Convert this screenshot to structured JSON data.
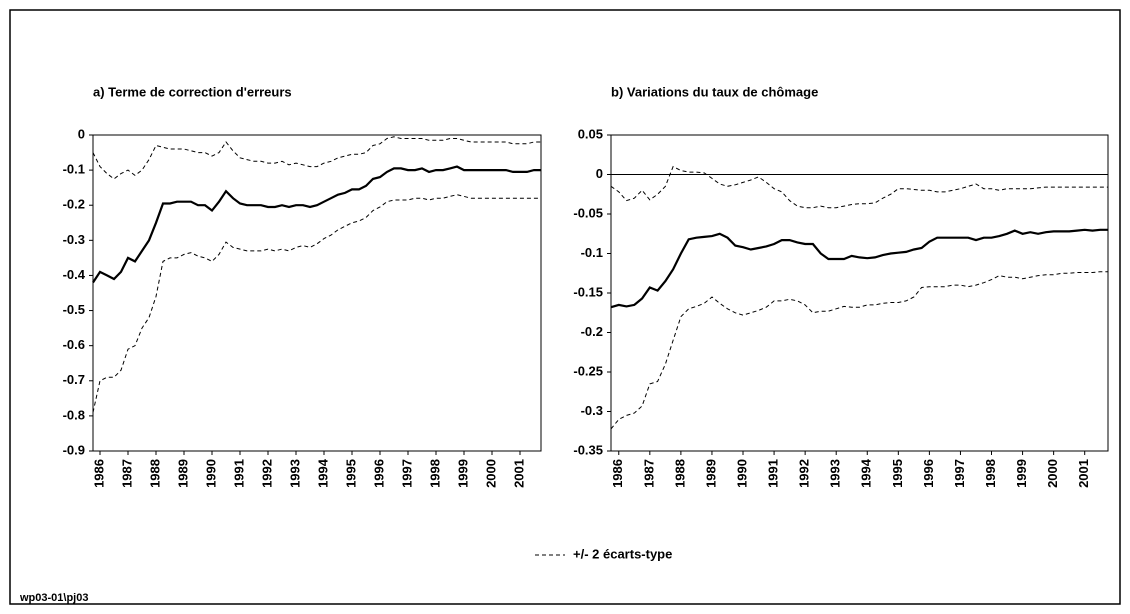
{
  "chart_data": [
    {
      "type": "line",
      "title": "a) Terme de correction d'erreurs",
      "categories": [
        null,
        "1986",
        null,
        null,
        null,
        "1987",
        null,
        null,
        null,
        "1988",
        null,
        null,
        null,
        "1989",
        null,
        null,
        null,
        "1990",
        null,
        null,
        null,
        "1991",
        null,
        null,
        null,
        "1992",
        null,
        null,
        null,
        "1993",
        null,
        null,
        null,
        "1994",
        null,
        null,
        null,
        "1995",
        null,
        null,
        null,
        "1996",
        null,
        null,
        null,
        "1997",
        null,
        null,
        null,
        "1998",
        null,
        null,
        null,
        "1999",
        null,
        null,
        null,
        "2000",
        null,
        null,
        null,
        "2001",
        null,
        null,
        null
      ],
      "ylim": [
        -0.9,
        0
      ],
      "yticks": [
        0,
        -0.1,
        -0.2,
        -0.3,
        -0.4,
        -0.5,
        -0.6,
        -0.7,
        -0.8,
        -0.9
      ],
      "zero_line": false,
      "series": [
        {
          "color": "#000000",
          "dash": false,
          "values": [
            -0.42,
            -0.39,
            -0.4,
            -0.41,
            -0.39,
            -0.35,
            -0.36,
            -0.33,
            -0.3,
            -0.25,
            -0.195,
            -0.195,
            -0.19,
            -0.19,
            -0.19,
            -0.2,
            -0.2,
            -0.215,
            -0.19,
            -0.16,
            -0.18,
            -0.195,
            -0.2,
            -0.2,
            -0.2,
            -0.205,
            -0.205,
            -0.2,
            -0.205,
            -0.2,
            -0.2,
            -0.205,
            -0.2,
            -0.19,
            -0.18,
            -0.17,
            -0.165,
            -0.155,
            -0.155,
            -0.145,
            -0.125,
            -0.12,
            -0.105,
            -0.095,
            -0.095,
            -0.1,
            -0.1,
            -0.095,
            -0.105,
            -0.1,
            -0.1,
            -0.095,
            -0.09,
            -0.1,
            -0.1,
            -0.1,
            -0.1,
            -0.1,
            -0.1,
            -0.1,
            -0.105,
            -0.105,
            -0.105,
            -0.1,
            -0.1
          ]
        },
        {
          "color": "#000000",
          "dash": true,
          "values": [
            -0.05,
            -0.09,
            -0.11,
            -0.125,
            -0.11,
            -0.1,
            -0.115,
            -0.1,
            -0.07,
            -0.03,
            -0.035,
            -0.04,
            -0.04,
            -0.04,
            -0.045,
            -0.05,
            -0.05,
            -0.06,
            -0.05,
            -0.02,
            -0.045,
            -0.065,
            -0.07,
            -0.075,
            -0.075,
            -0.08,
            -0.08,
            -0.075,
            -0.085,
            -0.08,
            -0.085,
            -0.09,
            -0.09,
            -0.08,
            -0.075,
            -0.065,
            -0.06,
            -0.055,
            -0.055,
            -0.05,
            -0.03,
            -0.025,
            -0.01,
            -0.005,
            -0.01,
            -0.01,
            -0.01,
            -0.01,
            -0.015,
            -0.015,
            -0.015,
            -0.01,
            -0.01,
            -0.015,
            -0.02,
            -0.02,
            -0.02,
            -0.02,
            -0.02,
            -0.02,
            -0.025,
            -0.025,
            -0.025,
            -0.02,
            -0.02
          ]
        },
        {
          "color": "#000000",
          "dash": true,
          "values": [
            -0.79,
            -0.7,
            -0.69,
            -0.69,
            -0.67,
            -0.61,
            -0.6,
            -0.55,
            -0.52,
            -0.46,
            -0.36,
            -0.35,
            -0.35,
            -0.34,
            -0.335,
            -0.345,
            -0.35,
            -0.36,
            -0.34,
            -0.305,
            -0.32,
            -0.325,
            -0.33,
            -0.33,
            -0.33,
            -0.325,
            -0.33,
            -0.325,
            -0.33,
            -0.32,
            -0.315,
            -0.32,
            -0.31,
            -0.295,
            -0.285,
            -0.27,
            -0.26,
            -0.25,
            -0.245,
            -0.235,
            -0.215,
            -0.205,
            -0.19,
            -0.185,
            -0.185,
            -0.185,
            -0.18,
            -0.18,
            -0.185,
            -0.18,
            -0.18,
            -0.175,
            -0.17,
            -0.175,
            -0.18,
            -0.18,
            -0.18,
            -0.18,
            -0.18,
            -0.18,
            -0.18,
            -0.18,
            -0.18,
            -0.18,
            -0.18
          ]
        }
      ]
    },
    {
      "type": "line",
      "title": "b) Variations du taux de chômage",
      "categories": [
        null,
        "1986",
        null,
        null,
        null,
        "1987",
        null,
        null,
        null,
        "1988",
        null,
        null,
        null,
        "1989",
        null,
        null,
        null,
        "1990",
        null,
        null,
        null,
        "1991",
        null,
        null,
        null,
        "1992",
        null,
        null,
        null,
        "1993",
        null,
        null,
        null,
        "1994",
        null,
        null,
        null,
        "1995",
        null,
        null,
        null,
        "1996",
        null,
        null,
        null,
        "1997",
        null,
        null,
        null,
        "1998",
        null,
        null,
        null,
        "1999",
        null,
        null,
        null,
        "2000",
        null,
        null,
        null,
        "2001",
        null,
        null,
        null
      ],
      "ylim": [
        -0.35,
        0.05
      ],
      "yticks": [
        0.05,
        0,
        -0.05,
        -0.1,
        -0.15,
        -0.2,
        -0.25,
        -0.3,
        -0.35
      ],
      "zero_line": true,
      "series": [
        {
          "color": "#000000",
          "dash": false,
          "values": [
            -0.168,
            -0.165,
            -0.167,
            -0.165,
            -0.157,
            -0.143,
            -0.147,
            -0.135,
            -0.12,
            -0.1,
            -0.082,
            -0.08,
            -0.079,
            -0.078,
            -0.075,
            -0.08,
            -0.09,
            -0.092,
            -0.095,
            -0.093,
            -0.091,
            -0.088,
            -0.083,
            -0.083,
            -0.086,
            -0.088,
            -0.088,
            -0.1,
            -0.107,
            -0.107,
            -0.107,
            -0.103,
            -0.105,
            -0.106,
            -0.105,
            -0.102,
            -0.1,
            -0.099,
            -0.098,
            -0.095,
            -0.093,
            -0.085,
            -0.08,
            -0.08,
            -0.08,
            -0.08,
            -0.08,
            -0.083,
            -0.08,
            -0.08,
            -0.078,
            -0.075,
            -0.071,
            -0.075,
            -0.073,
            -0.075,
            -0.073,
            -0.072,
            -0.072,
            -0.072,
            -0.071,
            -0.07,
            -0.071,
            -0.07,
            -0.07
          ]
        },
        {
          "color": "#000000",
          "dash": true,
          "values": [
            -0.015,
            -0.022,
            -0.033,
            -0.03,
            -0.02,
            -0.032,
            -0.025,
            -0.015,
            0.01,
            0.005,
            0.003,
            0.003,
            0.002,
            -0.005,
            -0.012,
            -0.015,
            -0.013,
            -0.01,
            -0.007,
            -0.003,
            -0.01,
            -0.018,
            -0.022,
            -0.033,
            -0.04,
            -0.042,
            -0.042,
            -0.04,
            -0.042,
            -0.042,
            -0.04,
            -0.038,
            -0.037,
            -0.037,
            -0.036,
            -0.03,
            -0.025,
            -0.018,
            -0.018,
            -0.019,
            -0.02,
            -0.02,
            -0.022,
            -0.022,
            -0.02,
            -0.018,
            -0.015,
            -0.012,
            -0.018,
            -0.018,
            -0.02,
            -0.018,
            -0.018,
            -0.018,
            -0.018,
            -0.017,
            -0.016,
            -0.016,
            -0.016,
            -0.016,
            -0.016,
            -0.016,
            -0.016,
            -0.016,
            -0.016
          ]
        },
        {
          "color": "#000000",
          "dash": true,
          "values": [
            -0.322,
            -0.31,
            -0.305,
            -0.302,
            -0.293,
            -0.265,
            -0.262,
            -0.24,
            -0.21,
            -0.18,
            -0.17,
            -0.167,
            -0.163,
            -0.155,
            -0.163,
            -0.17,
            -0.175,
            -0.178,
            -0.175,
            -0.172,
            -0.168,
            -0.16,
            -0.16,
            -0.158,
            -0.16,
            -0.165,
            -0.175,
            -0.173,
            -0.173,
            -0.17,
            -0.167,
            -0.168,
            -0.168,
            -0.165,
            -0.165,
            -0.163,
            -0.162,
            -0.162,
            -0.16,
            -0.155,
            -0.143,
            -0.142,
            -0.142,
            -0.142,
            -0.14,
            -0.14,
            -0.142,
            -0.14,
            -0.137,
            -0.133,
            -0.128,
            -0.13,
            -0.13,
            -0.132,
            -0.13,
            -0.128,
            -0.127,
            -0.127,
            -0.125,
            -0.125,
            -0.124,
            -0.124,
            -0.124,
            -0.123,
            -0.123
          ]
        }
      ]
    }
  ],
  "legend": "+/- 2 écarts-type",
  "footer": "wp03-01\\pj03"
}
